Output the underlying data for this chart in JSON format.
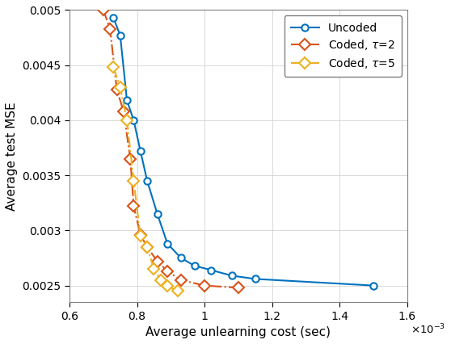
{
  "uncoded_x": [
    0.00073,
    0.00075,
    0.00077,
    0.00079,
    0.00081,
    0.00083,
    0.00086,
    0.00089,
    0.00093,
    0.00097,
    0.00102,
    0.00108,
    0.00115,
    0.0015
  ],
  "uncoded_y": [
    0.00493,
    0.00477,
    0.00418,
    0.004,
    0.00372,
    0.00345,
    0.00315,
    0.00288,
    0.00275,
    0.00268,
    0.00264,
    0.00259,
    0.00256,
    0.0025
  ],
  "coded2_x": [
    0.0007,
    0.00072,
    0.00074,
    0.00076,
    0.00078,
    0.00079,
    0.00081,
    0.00083,
    0.00086,
    0.00089,
    0.00093,
    0.001,
    0.0011
  ],
  "coded2_y": [
    0.005,
    0.00483,
    0.00428,
    0.00408,
    0.00365,
    0.00322,
    0.00296,
    0.00285,
    0.00272,
    0.00263,
    0.00255,
    0.0025,
    0.00248
  ],
  "coded5_x": [
    0.00073,
    0.00075,
    0.00077,
    0.00079,
    0.00081,
    0.00083,
    0.00085,
    0.00087,
    0.00089,
    0.00092
  ],
  "coded5_y": [
    0.00448,
    0.0043,
    0.004,
    0.00345,
    0.00295,
    0.00285,
    0.00265,
    0.00255,
    0.0025,
    0.00245
  ],
  "uncoded_color": "#0072BD",
  "coded2_color": "#D95319",
  "coded5_color": "#EDB120",
  "xlim": [
    0.0006,
    0.0016
  ],
  "ylim": [
    0.00235,
    0.005
  ],
  "xlabel": "Average unlearning cost (sec)",
  "ylabel": "Average test MSE",
  "legend_labels": [
    "Uncoded",
    "Coded, $\\tau$=2",
    "Coded, $\\tau$=5"
  ],
  "x_ticks": [
    0.0006,
    0.0008,
    0.001,
    0.0012,
    0.0014,
    0.0016
  ],
  "x_tick_labels": [
    "0.6",
    "0.8",
    "1",
    "1.2",
    "1.4",
    "1.6"
  ],
  "y_ticks": [
    0.0025,
    0.003,
    0.0035,
    0.004,
    0.0045,
    0.005
  ],
  "y_tick_labels": [
    "0.0025",
    "0.003",
    "0.0035",
    "0.004",
    "0.0045",
    "0.005"
  ],
  "grid_color": "#D3D3D3",
  "background_color": "#FFFFFF"
}
